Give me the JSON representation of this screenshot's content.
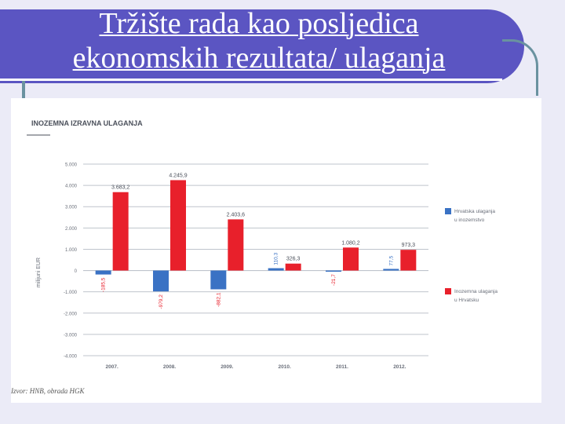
{
  "title_line1": "Tržište rada kao posljedica",
  "title_line2": "ekonomskih rezultata/ ulaganja",
  "source": "Izvor: HNB, obrada HGK",
  "colors": {
    "banner": "#5b55c2",
    "outward": "#3a72c4",
    "inward": "#e8202b",
    "grid": "#bfc4cc"
  },
  "chart_data": {
    "type": "bar",
    "title": "INOZEMNA IZRAVNA ULAGANJA",
    "ylabel": "milijuni EUR",
    "xlabel": "",
    "categories": [
      "2007.",
      "2008.",
      "2009.",
      "2010.",
      "2011.",
      "2012."
    ],
    "ylim": [
      -4000,
      5000
    ],
    "yticks": [
      "5.000",
      "4.000",
      "3.000",
      "2.000",
      "1.000",
      "0",
      "-1.000",
      "-2.000",
      "-3.000",
      "-4.000"
    ],
    "grid": true,
    "legend_position": "right",
    "series": [
      {
        "name": "Hrvatska ulaganja u inozemstvo",
        "values": [
          -185.5,
          -979.2,
          -882.1,
          110.3,
          -21.7,
          77.5
        ],
        "labels": [
          "-185,5",
          "-979,2",
          "-882,1",
          "110,3",
          "-21,7",
          "77,5"
        ]
      },
      {
        "name": "Inozemna ulaganja u Hrvatsku",
        "values": [
          3683.2,
          4245.9,
          2403.6,
          326.3,
          1080.2,
          973.3
        ],
        "labels": [
          "3.683,2",
          "4.245,9",
          "2.403,6",
          "326,3",
          "1.080,2",
          "973,3"
        ]
      }
    ]
  }
}
